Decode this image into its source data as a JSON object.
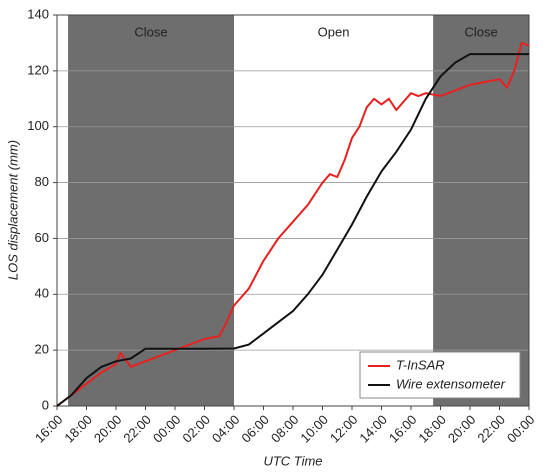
{
  "chart_data": {
    "type": "line",
    "x_label": "UTC Time",
    "y_label": "LOS displacement (mm)",
    "xlim": [
      0,
      32
    ],
    "ylim": [
      0,
      140
    ],
    "xticks": [
      {
        "value": 0,
        "label": "16:00"
      },
      {
        "value": 2,
        "label": "18:00"
      },
      {
        "value": 4,
        "label": "20:00"
      },
      {
        "value": 6,
        "label": "22:00"
      },
      {
        "value": 8,
        "label": "00:00"
      },
      {
        "value": 10,
        "label": "02:00"
      },
      {
        "value": 12,
        "label": "04:00"
      },
      {
        "value": 14,
        "label": "06:00"
      },
      {
        "value": 16,
        "label": "08:00"
      },
      {
        "value": 18,
        "label": "10:00"
      },
      {
        "value": 20,
        "label": "12:00"
      },
      {
        "value": 22,
        "label": "14:00"
      },
      {
        "value": 24,
        "label": "16:00"
      },
      {
        "value": 26,
        "label": "18:00"
      },
      {
        "value": 28,
        "label": "20:00"
      },
      {
        "value": 30,
        "label": "22:00"
      },
      {
        "value": 32,
        "label": "00:00"
      }
    ],
    "yticks": [
      0,
      20,
      40,
      60,
      80,
      100,
      120,
      140
    ],
    "grid": true,
    "legend": "lower right",
    "regions": [
      {
        "label": "Close",
        "start": 0.75,
        "end": 12,
        "color": "#6e6e6e"
      },
      {
        "label": "Open",
        "start": 12,
        "end": 25.5,
        "color": "#ffffff"
      },
      {
        "label": "Close",
        "start": 25.5,
        "end": 32,
        "color": "#6e6e6e"
      }
    ],
    "series": [
      {
        "name": "T-InSAR",
        "color": "#e8201e",
        "x": [
          0,
          1,
          2,
          3,
          4,
          4.3,
          5,
          6,
          7,
          8,
          9,
          10,
          11,
          11.5,
          12,
          13,
          14,
          15,
          16,
          17,
          18,
          18.5,
          19,
          19.5,
          20,
          20.5,
          21,
          21.5,
          22,
          22.5,
          23,
          24,
          24.5,
          25,
          26,
          27,
          28,
          29,
          30,
          30.5,
          31,
          31.5,
          32
        ],
        "values": [
          0,
          4,
          8,
          12,
          15,
          19,
          14,
          16,
          18,
          20,
          22,
          24,
          25,
          30,
          36,
          42,
          52,
          60,
          66,
          72,
          80,
          83,
          82,
          88,
          96,
          100,
          107,
          110,
          108,
          110,
          106,
          112,
          111,
          112,
          111,
          113,
          115,
          116,
          117,
          114,
          120,
          130,
          129
        ]
      },
      {
        "name": "Wire extensometer",
        "color": "#111111",
        "x": [
          0,
          1,
          2,
          3,
          4,
          5,
          6,
          8,
          10,
          12,
          13,
          14,
          15,
          16,
          17,
          18,
          19,
          20,
          21,
          22,
          23,
          24,
          25,
          26,
          27,
          28,
          30,
          32
        ],
        "values": [
          0,
          4,
          10,
          14,
          16,
          17,
          20.5,
          20.5,
          20.5,
          20.6,
          22,
          26,
          30,
          34,
          40,
          47,
          56,
          65,
          75,
          84,
          91,
          99,
          110,
          118,
          123,
          126,
          126,
          126
        ]
      }
    ]
  }
}
